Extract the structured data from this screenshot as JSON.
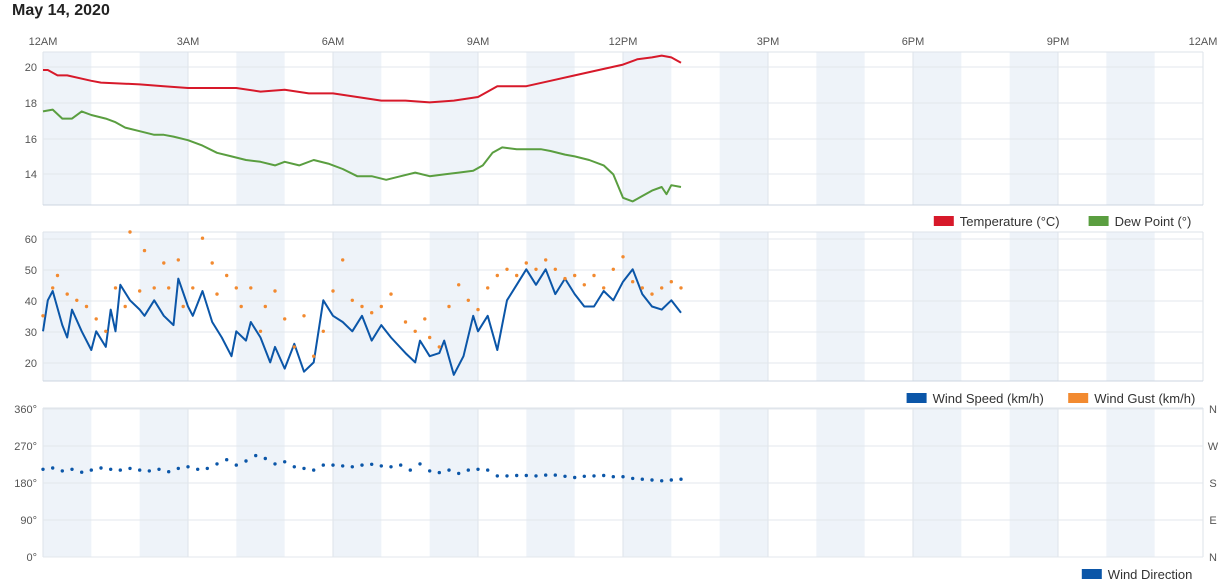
{
  "page": {
    "title": "May 14, 2020"
  },
  "chart_data": [
    {
      "type": "line",
      "x_axis_ticks": [
        "12AM",
        "3AM",
        "6AM",
        "9AM",
        "12PM",
        "3PM",
        "6PM",
        "9PM",
        "12AM"
      ],
      "x_unit": "hours since midnight",
      "y_ticks": [
        "14",
        "16",
        "18",
        "20"
      ],
      "ylim": [
        12.4,
        20.9
      ],
      "grid": true,
      "legend_placement": "bottom-right",
      "series": [
        {
          "name": "Temperature (°C)",
          "color": "#d7192a",
          "x": [
            0,
            0.1,
            0.3,
            0.5,
            1.0,
            1.2,
            2.0,
            2.5,
            3.0,
            4.0,
            4.5,
            5.0,
            5.5,
            6.0,
            6.5,
            7.0,
            7.5,
            8.0,
            8.5,
            9.0,
            9.2,
            9.4,
            10.0,
            10.5,
            11.0,
            11.5,
            12.0,
            12.3,
            12.6,
            12.8,
            13.0,
            13.2
          ],
          "values": [
            19.9,
            19.9,
            19.6,
            19.6,
            19.3,
            19.2,
            19.1,
            19.0,
            18.9,
            18.9,
            18.7,
            18.8,
            18.6,
            18.6,
            18.4,
            18.2,
            18.2,
            18.1,
            18.2,
            18.4,
            18.7,
            19.0,
            19.0,
            19.3,
            19.6,
            19.9,
            20.2,
            20.5,
            20.6,
            20.7,
            20.6,
            20.3
          ]
        },
        {
          "name": "Dew Point (°)",
          "color": "#5a9e40",
          "x": [
            0,
            0.2,
            0.4,
            0.6,
            0.8,
            1.0,
            1.3,
            1.5,
            1.7,
            2.0,
            2.3,
            2.5,
            2.7,
            3.0,
            3.3,
            3.6,
            3.9,
            4.2,
            4.5,
            4.8,
            5.0,
            5.3,
            5.6,
            5.9,
            6.2,
            6.5,
            6.8,
            7.1,
            7.4,
            7.7,
            8.0,
            8.3,
            8.6,
            8.9,
            9.1,
            9.3,
            9.5,
            9.8,
            10.1,
            10.3,
            10.5,
            10.8,
            11.0,
            11.3,
            11.6,
            11.8,
            12.0,
            12.2,
            12.4,
            12.6,
            12.8,
            12.9,
            13.0,
            13.2
          ],
          "values": [
            17.6,
            17.7,
            17.2,
            17.2,
            17.6,
            17.4,
            17.2,
            17.0,
            16.7,
            16.5,
            16.3,
            16.3,
            16.2,
            16.0,
            15.7,
            15.3,
            15.1,
            14.9,
            14.8,
            14.6,
            14.8,
            14.6,
            14.9,
            14.7,
            14.4,
            14.0,
            14.0,
            13.8,
            14.0,
            14.2,
            14.0,
            14.1,
            14.2,
            14.3,
            14.6,
            15.3,
            15.6,
            15.5,
            15.5,
            15.5,
            15.4,
            15.2,
            15.1,
            14.9,
            14.6,
            14.1,
            12.8,
            12.6,
            12.9,
            13.2,
            13.4,
            13.0,
            13.5,
            13.4
          ]
        }
      ]
    },
    {
      "type": "line",
      "x_axis_ticks": [],
      "x_unit": "hours since midnight",
      "y_ticks": [
        "20",
        "30",
        "40",
        "50",
        "60"
      ],
      "ylim": [
        14,
        62
      ],
      "grid": true,
      "legend_placement": "bottom-right",
      "series": [
        {
          "name": "Wind Speed (km/h)",
          "color": "#0b56a8",
          "style": "line",
          "x": [
            0,
            0.1,
            0.2,
            0.4,
            0.5,
            0.6,
            0.8,
            1.0,
            1.1,
            1.3,
            1.4,
            1.5,
            1.6,
            1.8,
            2.0,
            2.1,
            2.3,
            2.5,
            2.7,
            2.8,
            3.0,
            3.1,
            3.3,
            3.5,
            3.7,
            3.9,
            4.0,
            4.2,
            4.3,
            4.5,
            4.7,
            4.8,
            5.0,
            5.2,
            5.4,
            5.6,
            5.8,
            6.0,
            6.2,
            6.4,
            6.6,
            6.8,
            7.0,
            7.2,
            7.5,
            7.7,
            7.8,
            8.0,
            8.2,
            8.3,
            8.5,
            8.7,
            8.9,
            9.0,
            9.2,
            9.4,
            9.6,
            9.8,
            10.0,
            10.2,
            10.4,
            10.6,
            10.8,
            11.0,
            11.2,
            11.4,
            11.6,
            11.8,
            12.0,
            12.2,
            12.4,
            12.6,
            12.8,
            13.0,
            13.2
          ],
          "values": [
            30,
            40,
            43,
            32,
            28,
            37,
            30,
            24,
            30,
            25,
            37,
            30,
            45,
            40,
            37,
            35,
            40,
            35,
            32,
            47,
            38,
            35,
            43,
            33,
            28,
            22,
            30,
            27,
            33,
            28,
            20,
            25,
            18,
            26,
            17,
            20,
            40,
            35,
            33,
            30,
            35,
            27,
            32,
            28,
            23,
            20,
            27,
            22,
            23,
            27,
            16,
            22,
            35,
            30,
            35,
            24,
            40,
            45,
            50,
            45,
            50,
            42,
            47,
            42,
            38,
            38,
            43,
            40,
            46,
            50,
            42,
            38,
            37,
            40,
            36
          ]
        },
        {
          "name": "Wind Gust (km/h)",
          "color": "#f28a30",
          "style": "dots",
          "x": [
            0,
            0.2,
            0.3,
            0.5,
            0.7,
            0.9,
            1.1,
            1.3,
            1.5,
            1.7,
            1.8,
            2.0,
            2.1,
            2.3,
            2.5,
            2.6,
            2.8,
            2.9,
            3.1,
            3.3,
            3.5,
            3.6,
            3.8,
            4.0,
            4.1,
            4.3,
            4.5,
            4.6,
            4.8,
            5.0,
            5.2,
            5.4,
            5.6,
            5.8,
            6.0,
            6.2,
            6.4,
            6.6,
            6.8,
            7.0,
            7.2,
            7.5,
            7.7,
            7.9,
            8.0,
            8.2,
            8.4,
            8.6,
            8.8,
            9.0,
            9.2,
            9.4,
            9.6,
            9.8,
            10.0,
            10.2,
            10.4,
            10.6,
            10.8,
            11.0,
            11.2,
            11.4,
            11.6,
            11.8,
            12.0,
            12.2,
            12.4,
            12.6,
            12.8,
            13.0,
            13.2
          ],
          "values": [
            35,
            44,
            48,
            42,
            40,
            38,
            34,
            30,
            44,
            38,
            62,
            43,
            56,
            44,
            52,
            44,
            53,
            38,
            44,
            60,
            52,
            42,
            48,
            44,
            38,
            44,
            30,
            38,
            43,
            34,
            25,
            35,
            22,
            30,
            43,
            53,
            40,
            38,
            36,
            38,
            42,
            33,
            30,
            34,
            28,
            25,
            38,
            45,
            40,
            37,
            44,
            48,
            50,
            48,
            52,
            50,
            53,
            50,
            47,
            48,
            45,
            48,
            44,
            50,
            54,
            46,
            44,
            42,
            44,
            46,
            44
          ]
        }
      ]
    },
    {
      "type": "scatter",
      "x_axis_ticks": [],
      "x_unit": "hours since midnight",
      "y_ticks": [
        "0°",
        "90°",
        "180°",
        "270°",
        "360°"
      ],
      "y_right_ticks": [
        "N",
        "E",
        "S",
        "W",
        "N"
      ],
      "ylim": [
        0,
        360
      ],
      "grid": true,
      "legend_placement": "bottom-right",
      "series": [
        {
          "name": "Wind Direction",
          "color": "#0b56a8",
          "x": [
            0,
            0.2,
            0.4,
            0.6,
            0.8,
            1.0,
            1.2,
            1.4,
            1.6,
            1.8,
            2.0,
            2.2,
            2.4,
            2.6,
            2.8,
            3.0,
            3.2,
            3.4,
            3.6,
            3.8,
            4.0,
            4.2,
            4.4,
            4.6,
            4.8,
            5.0,
            5.2,
            5.4,
            5.6,
            5.8,
            6.0,
            6.2,
            6.4,
            6.6,
            6.8,
            7.0,
            7.2,
            7.4,
            7.6,
            7.8,
            8.0,
            8.2,
            8.4,
            8.6,
            8.8,
            9.0,
            9.2,
            9.4,
            9.6,
            9.8,
            10.0,
            10.2,
            10.4,
            10.6,
            10.8,
            11.0,
            11.2,
            11.4,
            11.6,
            11.8,
            12.0,
            12.2,
            12.4,
            12.6,
            12.8,
            13.0,
            13.2
          ],
          "values": [
            212,
            215,
            208,
            212,
            205,
            210,
            215,
            212,
            210,
            214,
            210,
            208,
            212,
            206,
            214,
            218,
            212,
            214,
            225,
            235,
            222,
            232,
            245,
            238,
            225,
            230,
            218,
            214,
            210,
            222,
            222,
            220,
            218,
            222,
            224,
            220,
            218,
            222,
            210,
            225,
            208,
            204,
            210,
            202,
            210,
            212,
            210,
            196,
            196,
            197,
            197,
            196,
            198,
            198,
            195,
            192,
            195,
            196,
            197,
            194,
            194,
            190,
            188,
            186,
            184,
            186,
            188
          ]
        }
      ]
    }
  ]
}
